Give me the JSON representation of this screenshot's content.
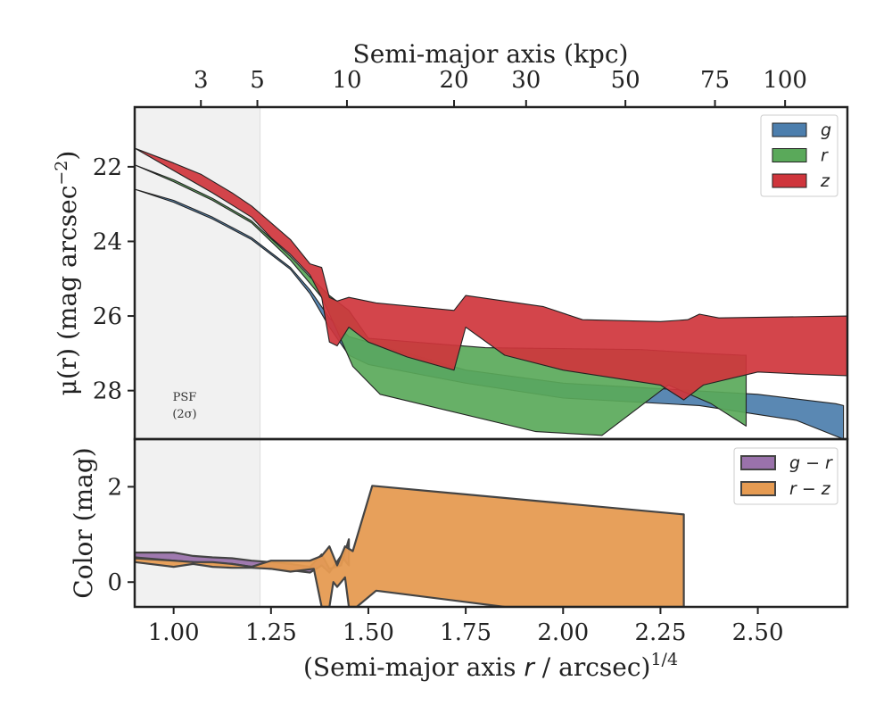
{
  "chart_data": [
    {
      "type": "area",
      "panel": "top",
      "ylabel": "μ(r) (mag arcsec⁻²)",
      "ylabel_main": "μ(r) (mag arcsec",
      "ylabel_sup": "−2",
      "ylabel_close": ")",
      "xlim": [
        0.9,
        2.73
      ],
      "ylim": [
        29.3,
        20.4
      ],
      "y_inverted": true,
      "yticks": [
        22,
        24,
        26,
        28
      ],
      "xlabel_top": "Semi-major axis (kpc)",
      "top_ticks": [
        {
          "label": "3",
          "x": 1.07
        },
        {
          "label": "5",
          "x": 1.215
        },
        {
          "label": "10",
          "x": 1.445
        },
        {
          "label": "20",
          "x": 1.72
        },
        {
          "label": "30",
          "x": 1.905
        },
        {
          "label": "50",
          "x": 2.16
        },
        {
          "label": "75",
          "x": 2.39
        },
        {
          "label": "100",
          "x": 2.57
        }
      ],
      "shaded_region": {
        "x": [
          0.9,
          1.222
        ],
        "label_line1": "PSF",
        "label_line2": "(2σ)"
      },
      "legend": {
        "position": "top-right",
        "entries": [
          "g",
          "r",
          "z"
        ]
      },
      "series": [
        {
          "name": "g",
          "color": "#4c7ead",
          "upper": [
            [
              0.9,
              22.6
            ],
            [
              1.0,
              22.9
            ],
            [
              1.1,
              23.35
            ],
            [
              1.2,
              23.9
            ],
            [
              1.3,
              24.7
            ],
            [
              1.35,
              25.3
            ],
            [
              1.4,
              26.05
            ],
            [
              1.45,
              26.55
            ],
            [
              1.5,
              26.7
            ],
            [
              1.75,
              27.45
            ],
            [
              2.0,
              27.8
            ],
            [
              2.5,
              28.1
            ],
            [
              2.7,
              28.35
            ],
            [
              2.72,
              28.4
            ]
          ],
          "lower": [
            [
              2.72,
              28.4
            ],
            [
              2.72,
              29.3
            ],
            [
              2.6,
              28.8
            ],
            [
              2.35,
              28.4
            ],
            [
              2.0,
              28.2
            ],
            [
              1.75,
              27.8
            ],
            [
              1.5,
              27.3
            ],
            [
              1.45,
              27.05
            ],
            [
              1.4,
              26.3
            ],
            [
              1.35,
              25.4
            ],
            [
              1.3,
              24.75
            ],
            [
              1.2,
              23.95
            ],
            [
              1.1,
              23.4
            ],
            [
              1.0,
              22.95
            ],
            [
              0.9,
              22.6
            ]
          ]
        },
        {
          "name": "r",
          "color": "#5aa95a",
          "upper": [
            [
              0.9,
              21.95
            ],
            [
              1.0,
              22.35
            ],
            [
              1.1,
              22.85
            ],
            [
              1.2,
              23.45
            ],
            [
              1.3,
              24.4
            ],
            [
              1.35,
              24.95
            ],
            [
              1.4,
              25.45
            ],
            [
              1.45,
              25.85
            ],
            [
              1.5,
              26.6
            ],
            [
              1.8,
              26.85
            ],
            [
              2.2,
              26.9
            ],
            [
              2.36,
              27.0
            ],
            [
              2.46,
              27.05
            ],
            [
              2.47,
              27.05
            ]
          ],
          "lower": [
            [
              2.47,
              27.05
            ],
            [
              2.47,
              28.95
            ],
            [
              2.38,
              28.35
            ],
            [
              2.27,
              27.85
            ],
            [
              2.1,
              29.2
            ],
            [
              1.93,
              29.1
            ],
            [
              1.53,
              28.1
            ],
            [
              1.46,
              27.35
            ],
            [
              1.42,
              26.4
            ],
            [
              1.38,
              25.5
            ],
            [
              1.3,
              24.5
            ],
            [
              1.2,
              23.5
            ],
            [
              1.1,
              22.9
            ],
            [
              1.0,
              22.4
            ],
            [
              0.9,
              21.95
            ]
          ]
        },
        {
          "name": "z",
          "color": "#cf353c",
          "upper": [
            [
              0.9,
              21.5
            ],
            [
              1.0,
              21.9
            ],
            [
              1.07,
              22.2
            ],
            [
              1.15,
              22.7
            ],
            [
              1.2,
              23.05
            ],
            [
              1.25,
              23.5
            ],
            [
              1.3,
              23.95
            ],
            [
              1.35,
              24.6
            ],
            [
              1.38,
              24.7
            ],
            [
              1.4,
              25.5
            ],
            [
              1.42,
              25.6
            ],
            [
              1.45,
              25.5
            ],
            [
              1.52,
              25.65
            ],
            [
              1.72,
              25.85
            ],
            [
              1.75,
              25.45
            ],
            [
              1.95,
              25.75
            ],
            [
              2.05,
              26.1
            ],
            [
              2.25,
              26.15
            ],
            [
              2.32,
              26.1
            ],
            [
              2.35,
              25.95
            ],
            [
              2.4,
              26.05
            ],
            [
              2.73,
              26.0
            ]
          ],
          "lower": [
            [
              2.73,
              26.0
            ],
            [
              2.73,
              27.6
            ],
            [
              2.6,
              27.55
            ],
            [
              2.5,
              27.5
            ],
            [
              2.36,
              27.85
            ],
            [
              2.31,
              28.25
            ],
            [
              2.25,
              27.85
            ],
            [
              2.0,
              27.45
            ],
            [
              1.85,
              27.05
            ],
            [
              1.75,
              26.3
            ],
            [
              1.72,
              27.45
            ],
            [
              1.6,
              27.1
            ],
            [
              1.5,
              26.7
            ],
            [
              1.45,
              26.3
            ],
            [
              1.42,
              26.8
            ],
            [
              1.4,
              26.7
            ],
            [
              1.38,
              25.5
            ],
            [
              1.35,
              24.9
            ],
            [
              1.3,
              24.35
            ],
            [
              1.25,
              23.9
            ],
            [
              1.2,
              23.35
            ],
            [
              1.1,
              22.7
            ],
            [
              1.0,
              22.1
            ],
            [
              0.9,
              21.5
            ]
          ]
        }
      ]
    },
    {
      "type": "area",
      "panel": "bottom",
      "xlabel": "(Semi-major axis r / arcsec)1/4",
      "xlabel_pre": "(Semi-major axis ",
      "xlabel_var": "r",
      "xlabel_post": " / arcsec)",
      "xlabel_sup": "1/4",
      "ylabel": "Color (mag)",
      "xlim": [
        0.9,
        2.73
      ],
      "ylim": [
        -0.52,
        3.0
      ],
      "yticks": [
        0,
        2
      ],
      "xticks": [
        1.0,
        1.25,
        1.5,
        1.75,
        2.0,
        2.25,
        2.5
      ],
      "xtick_labels": [
        "1.00",
        "1.25",
        "1.50",
        "1.75",
        "2.00",
        "2.25",
        "2.50"
      ],
      "legend": {
        "position": "top-right",
        "entries": [
          "g − r",
          "r − z"
        ]
      },
      "series": [
        {
          "name": "g − r",
          "color": "#9a72ab",
          "upper": [
            [
              0.9,
              0.62
            ],
            [
              1.0,
              0.62
            ],
            [
              1.05,
              0.55
            ],
            [
              1.1,
              0.52
            ],
            [
              1.15,
              0.5
            ],
            [
              1.2,
              0.45
            ],
            [
              1.25,
              0.42
            ],
            [
              1.3,
              0.38
            ],
            [
              1.35,
              0.32
            ],
            [
              1.38,
              0.58
            ],
            [
              1.4,
              0.28
            ],
            [
              1.43,
              0.35
            ],
            [
              1.45,
              0.9
            ]
          ],
          "lower": [
            [
              1.45,
              0.9
            ],
            [
              1.45,
              0.35
            ],
            [
              1.43,
              0.55
            ],
            [
              1.4,
              0.2
            ],
            [
              1.38,
              0.35
            ],
            [
              1.35,
              0.2
            ],
            [
              1.3,
              0.25
            ],
            [
              1.25,
              0.28
            ],
            [
              1.2,
              0.32
            ],
            [
              1.15,
              0.38
            ],
            [
              1.1,
              0.4
            ],
            [
              1.05,
              0.42
            ],
            [
              1.0,
              0.45
            ],
            [
              0.9,
              0.52
            ]
          ]
        },
        {
          "name": "r − z",
          "color": "#e69b52",
          "upper": [
            [
              0.9,
              0.5
            ],
            [
              1.0,
              0.45
            ],
            [
              1.05,
              0.42
            ],
            [
              1.1,
              0.42
            ],
            [
              1.15,
              0.38
            ],
            [
              1.2,
              0.32
            ],
            [
              1.25,
              0.45
            ],
            [
              1.3,
              0.45
            ],
            [
              1.35,
              0.45
            ],
            [
              1.38,
              0.55
            ],
            [
              1.4,
              0.75
            ],
            [
              1.42,
              0.35
            ],
            [
              1.44,
              0.75
            ],
            [
              1.46,
              0.65
            ],
            [
              1.51,
              2.02
            ],
            [
              2.31,
              1.42
            ]
          ],
          "lower": [
            [
              2.31,
              1.42
            ],
            [
              2.31,
              -0.52
            ],
            [
              1.85,
              -0.52
            ],
            [
              1.52,
              -0.18
            ],
            [
              1.47,
              -0.52
            ],
            [
              1.45,
              -0.52
            ],
            [
              1.44,
              0.1
            ],
            [
              1.42,
              -0.1
            ],
            [
              1.41,
              0.0
            ],
            [
              1.4,
              -0.52
            ],
            [
              1.38,
              -0.52
            ],
            [
              1.36,
              0.28
            ],
            [
              1.3,
              0.22
            ],
            [
              1.25,
              0.28
            ],
            [
              1.2,
              0.3
            ],
            [
              1.15,
              0.3
            ],
            [
              1.1,
              0.32
            ],
            [
              1.05,
              0.38
            ],
            [
              1.0,
              0.32
            ],
            [
              0.9,
              0.42
            ]
          ]
        }
      ]
    }
  ]
}
